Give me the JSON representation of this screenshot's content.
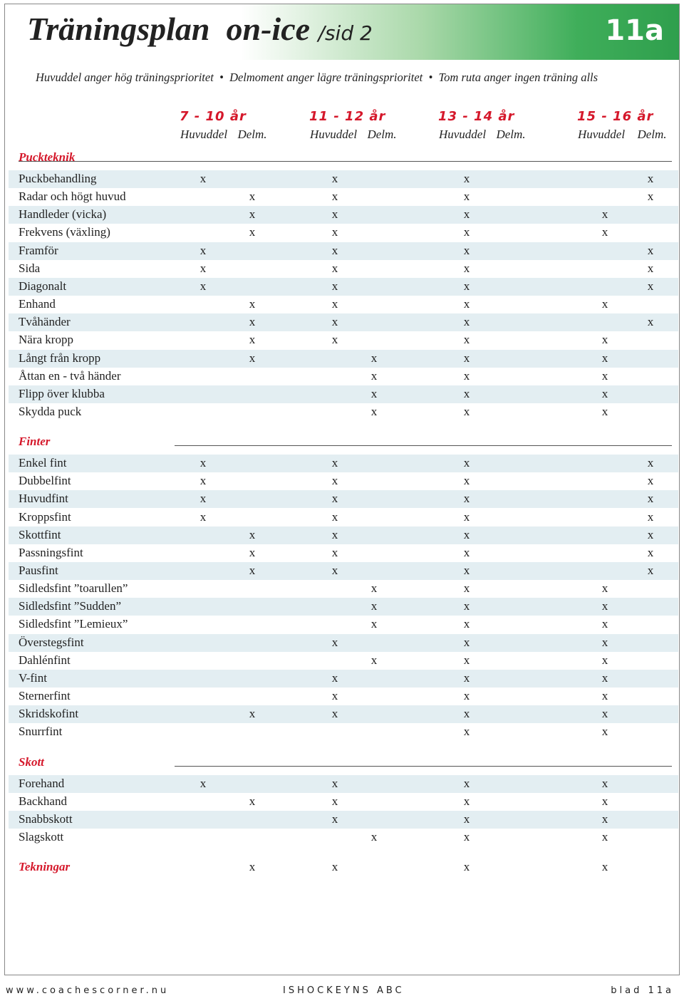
{
  "header": {
    "title": "Träningsplan",
    "title_2": "on-ice",
    "page": "/sid 2",
    "sheet": "11a",
    "legend": [
      "Huvuddel anger hög träningsprioritet",
      "Delmoment anger lägre träningsprioritet",
      "Tom ruta anger ingen träning alls"
    ]
  },
  "age_groups": [
    {
      "name": "7 - 10 år",
      "columns": [
        "Huvuddel",
        "Delm."
      ]
    },
    {
      "name": "11 - 12 år",
      "columns": [
        "Huvuddel",
        "Delm."
      ]
    },
    {
      "name": "13 - 14 år",
      "columns": [
        "Huvuddel",
        "Delm."
      ]
    },
    {
      "name": "15 - 16 år",
      "columns": [
        "Huvuddel",
        "Delm."
      ]
    }
  ],
  "sections": [
    {
      "title": "Puckteknik",
      "rows": [
        {
          "label": "Puckbehandling",
          "cells": [
            "x",
            null,
            "x",
            null,
            "x",
            null,
            null,
            "x"
          ]
        },
        {
          "label": "Radar och högt huvud",
          "cells": [
            null,
            "x",
            "x",
            null,
            "x",
            null,
            null,
            "x"
          ]
        },
        {
          "label": "Handleder (vicka)",
          "cells": [
            null,
            "x",
            "x",
            null,
            "x",
            null,
            "x",
            null
          ]
        },
        {
          "label": "Frekvens (växling)",
          "cells": [
            null,
            "x",
            "x",
            null,
            "x",
            null,
            "x",
            null
          ]
        },
        {
          "label": "Framför",
          "cells": [
            "x",
            null,
            "x",
            null,
            "x",
            null,
            null,
            "x"
          ]
        },
        {
          "label": "Sida",
          "cells": [
            "x",
            null,
            "x",
            null,
            "x",
            null,
            null,
            "x"
          ]
        },
        {
          "label": "Diagonalt",
          "cells": [
            "x",
            null,
            "x",
            null,
            "x",
            null,
            null,
            "x"
          ]
        },
        {
          "label": "Enhand",
          "cells": [
            null,
            "x",
            "x",
            null,
            "x",
            null,
            "x",
            null
          ]
        },
        {
          "label": "Tvåhänder",
          "cells": [
            null,
            "x",
            "x",
            null,
            "x",
            null,
            null,
            "x"
          ]
        },
        {
          "label": "Nära kropp",
          "cells": [
            null,
            "x",
            "x",
            null,
            "x",
            null,
            "x",
            null
          ]
        },
        {
          "label": "Långt från kropp",
          "cells": [
            null,
            "x",
            null,
            "x",
            "x",
            null,
            "x",
            null
          ]
        },
        {
          "label": "Åttan en - två händer",
          "cells": [
            null,
            null,
            null,
            "x",
            "x",
            null,
            "x",
            null
          ]
        },
        {
          "label": "Flipp över klubba",
          "cells": [
            null,
            null,
            null,
            "x",
            "x",
            null,
            "x",
            null
          ]
        },
        {
          "label": "Skydda puck",
          "cells": [
            null,
            null,
            null,
            "x",
            "x",
            null,
            "x",
            null
          ]
        }
      ]
    },
    {
      "title": "Finter",
      "rows": [
        {
          "label": "Enkel fint",
          "cells": [
            "x",
            null,
            "x",
            null,
            "x",
            null,
            null,
            "x"
          ]
        },
        {
          "label": "Dubbelfint",
          "cells": [
            "x",
            null,
            "x",
            null,
            "x",
            null,
            null,
            "x"
          ]
        },
        {
          "label": "Huvudfint",
          "cells": [
            "x",
            null,
            "x",
            null,
            "x",
            null,
            null,
            "x"
          ]
        },
        {
          "label": "Kroppsfint",
          "cells": [
            "x",
            null,
            "x",
            null,
            "x",
            null,
            null,
            "x"
          ]
        },
        {
          "label": "Skottfint",
          "cells": [
            null,
            "x",
            "x",
            null,
            "x",
            null,
            null,
            "x"
          ]
        },
        {
          "label": "Passningsfint",
          "cells": [
            null,
            "x",
            "x",
            null,
            "x",
            null,
            null,
            "x"
          ]
        },
        {
          "label": "Pausfint",
          "cells": [
            null,
            "x",
            "x",
            null,
            "x",
            null,
            null,
            "x"
          ]
        },
        {
          "label": "Sidledsfint ”toarullen”",
          "cells": [
            null,
            null,
            null,
            "x",
            "x",
            null,
            "x",
            null
          ]
        },
        {
          "label": "Sidledsfint ”Sudden”",
          "cells": [
            null,
            null,
            null,
            "x",
            "x",
            null,
            "x",
            null
          ]
        },
        {
          "label": "Sidledsfint ”Lemieux”",
          "cells": [
            null,
            null,
            null,
            "x",
            "x",
            null,
            "x",
            null
          ]
        },
        {
          "label": "Överstegsfint",
          "cells": [
            null,
            null,
            "x",
            null,
            "x",
            null,
            "x",
            null
          ]
        },
        {
          "label": "Dahlénfint",
          "cells": [
            null,
            null,
            null,
            "x",
            "x",
            null,
            "x",
            null
          ]
        },
        {
          "label": "V-fint",
          "cells": [
            null,
            null,
            "x",
            null,
            "x",
            null,
            "x",
            null
          ]
        },
        {
          "label": "Sternerfint",
          "cells": [
            null,
            null,
            "x",
            null,
            "x",
            null,
            "x",
            null
          ]
        },
        {
          "label": "Skridskofint",
          "cells": [
            null,
            "x",
            "x",
            null,
            "x",
            null,
            "x",
            null
          ]
        },
        {
          "label": "Snurrfint",
          "cells": [
            null,
            null,
            null,
            null,
            "x",
            null,
            "x",
            null
          ]
        }
      ]
    },
    {
      "title": "Skott",
      "rows": [
        {
          "label": "Forehand",
          "cells": [
            "x",
            null,
            "x",
            null,
            "x",
            null,
            "x",
            null
          ]
        },
        {
          "label": "Backhand",
          "cells": [
            null,
            "x",
            "x",
            null,
            "x",
            null,
            "x",
            null
          ]
        },
        {
          "label": "Snabbskott",
          "cells": [
            null,
            null,
            "x",
            null,
            "x",
            null,
            "x",
            null
          ]
        },
        {
          "label": "Slagskott",
          "cells": [
            null,
            null,
            null,
            "x",
            "x",
            null,
            "x",
            null
          ]
        }
      ]
    },
    {
      "title": "Tekningar",
      "cells": [
        null,
        "x",
        "x",
        null,
        "x",
        null,
        "x",
        null
      ]
    }
  ],
  "footer": {
    "left": "www.coachescorner.nu",
    "center": "ISHOCKEYNS ABC",
    "right": "blad 11a"
  }
}
